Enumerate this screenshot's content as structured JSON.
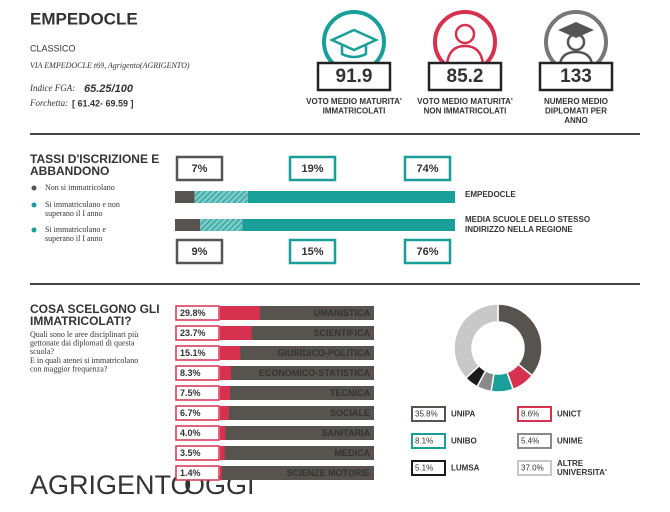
{
  "header": {
    "title": "EMPEDOCLE",
    "school_type": "CLASSICO",
    "address": "VIA EMPEDOCLE t69, Agrigento(AGRIGENTO)",
    "index_label": "Indice FGA:",
    "index_value": "65.25/100",
    "range_label": "Forchetta:",
    "range_value": "[ 61.42- 69.59 ]"
  },
  "stats": [
    {
      "value": 91.9,
      "label": "VOTO MEDIO MATURITA' IMMATRICOLATI"
    },
    {
      "value": 85.2,
      "label": "VOTO MEDIO MATURITA' NON IMMATRICOLATI"
    },
    {
      "value": 133,
      "label": "NUMERO MEDIO DIPLOMATI PER ANNO"
    }
  ],
  "chart_data": [
    {
      "type": "stacked_bar",
      "orientation": "horizontal",
      "title": "TASSI D'ISCRIZIONE E ABBANDONO",
      "categories": [
        "EMPEDOCLE",
        "MEDIA SCUOLE DELLO STESSO INDIRIZZO NELLA REGIONE"
      ],
      "series": [
        {
          "name": "Non si immatricolano",
          "color": "#57534e",
          "values": [
            7,
            9
          ],
          "value_labels": [
            "7%",
            "9%"
          ]
        },
        {
          "name": "Si immatricolano e non superano il I anno",
          "color": "#1a9e9a",
          "hatched": true,
          "values": [
            19,
            15
          ],
          "value_labels": [
            "19%",
            "15%"
          ]
        },
        {
          "name": "Si immatricolano e superano il I anno",
          "color": "#1a9e9a",
          "values": [
            74,
            76
          ],
          "value_labels": [
            "74%",
            "76%"
          ]
        }
      ],
      "xlim": [
        0,
        100
      ]
    },
    {
      "type": "bar",
      "orientation": "horizontal",
      "title": "COSA SCELGONO GLI IMMATRICOLATI?",
      "subtitle": [
        "Quali sono le aree disciplinari più gettonate dai diplomati di questa scuola?",
        "E in quali atenei si immatricolano con maggior frequenza?"
      ],
      "categories": [
        "UMANISTICA",
        "SCIENTIFICA",
        "GIURIDICO-POLITICA",
        "ECONOMICO-STATISTICA",
        "TECNICA",
        "SOCIALE",
        "SANITARIA",
        "MEDICA",
        "SCIENZE MOTORIE"
      ],
      "values": [
        29.8,
        23.7,
        15.1,
        8.3,
        7.5,
        6.7,
        4.0,
        3.5,
        1.4
      ],
      "value_labels": [
        "29.8%",
        "23.7%",
        "15.1%",
        "8.3%",
        "7.5%",
        "6.7%",
        "4.0%",
        "3.5%",
        "1.4%"
      ],
      "color": "#d6324f",
      "track_color": "#57534e",
      "xlim": [
        0,
        100
      ]
    },
    {
      "type": "pie",
      "donut": true,
      "categories": [
        "UNIPA",
        "UNICT",
        "UNIBO",
        "UNIME",
        "LUMSA",
        "ALTRE UNIVERSITA'"
      ],
      "values": [
        35.8,
        8.6,
        8.1,
        5.4,
        5.1,
        37.0
      ],
      "value_labels": [
        "35.8%",
        "8.6%",
        "8.1%",
        "5.4%",
        "5.1%",
        "37.0%"
      ],
      "colors": [
        "#57534e",
        "#d6324f",
        "#1a9e9a",
        "#8a8a8a",
        "#1a1a1a",
        "#c8c8c8"
      ]
    }
  ],
  "watermark": {
    "left": "AGRIGENTO",
    "right": "OGGI"
  }
}
